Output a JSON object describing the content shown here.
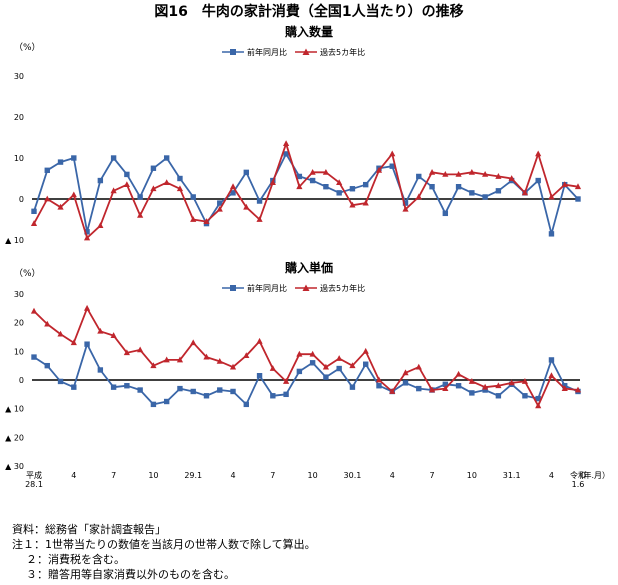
{
  "figure_title": "図16　牛肉の家計消費（全国1人当たり）の推移",
  "x_tick_labels": [
    {
      "i": 0,
      "lines": [
        "平成",
        "28.1"
      ]
    },
    {
      "i": 3,
      "lines": [
        "4"
      ]
    },
    {
      "i": 6,
      "lines": [
        "7"
      ]
    },
    {
      "i": 9,
      "lines": [
        "10"
      ]
    },
    {
      "i": 12,
      "lines": [
        "29.1"
      ]
    },
    {
      "i": 15,
      "lines": [
        "4"
      ]
    },
    {
      "i": 18,
      "lines": [
        "7"
      ]
    },
    {
      "i": 21,
      "lines": [
        "10"
      ]
    },
    {
      "i": 24,
      "lines": [
        "30.1"
      ]
    },
    {
      "i": 27,
      "lines": [
        "4"
      ]
    },
    {
      "i": 30,
      "lines": [
        "7"
      ]
    },
    {
      "i": 33,
      "lines": [
        "10"
      ]
    },
    {
      "i": 36,
      "lines": [
        "31.1"
      ]
    },
    {
      "i": 39,
      "lines": [
        "4"
      ]
    },
    {
      "i": 41,
      "lines": [
        "令和",
        "1.6"
      ]
    }
  ],
  "x_unit_label": "（年.月）",
  "colors": {
    "yoy": "#3a66a8",
    "avg5": "#c0262d",
    "zero_line": "#000000",
    "grid": "#dddddd"
  },
  "chart_data": [
    {
      "type": "line",
      "title": "購入数量",
      "ylabel": "（%）",
      "ylim": [
        -10,
        30
      ],
      "y_ticks": [
        30,
        20,
        10,
        0,
        -10
      ],
      "y_tick_labels": [
        "30",
        "20",
        "10",
        "0",
        "▲ 10"
      ],
      "legend_position": "top-center",
      "x": [
        "28.1",
        "28.2",
        "28.3",
        "28.4",
        "28.5",
        "28.6",
        "28.7",
        "28.8",
        "28.9",
        "28.10",
        "28.11",
        "28.12",
        "29.1",
        "29.2",
        "29.3",
        "29.4",
        "29.5",
        "29.6",
        "29.7",
        "29.8",
        "29.9",
        "29.10",
        "29.11",
        "29.12",
        "30.1",
        "30.2",
        "30.3",
        "30.4",
        "30.5",
        "30.6",
        "30.7",
        "30.8",
        "30.9",
        "30.10",
        "30.11",
        "30.12",
        "31.1",
        "31.2",
        "31.3",
        "31.4",
        "1.5",
        "1.6"
      ],
      "series": [
        {
          "name": "前年同月比",
          "marker": "square",
          "values": [
            -3,
            7,
            9,
            10,
            -8,
            4.5,
            10,
            6,
            0.5,
            7.5,
            10,
            5,
            0.5,
            -6,
            -1,
            1.5,
            6.5,
            -0.5,
            4.5,
            11,
            5.5,
            4.5,
            3,
            1.5,
            2.5,
            3.5,
            7.5,
            8,
            -1,
            5.5,
            3,
            -3.5,
            3,
            1.5,
            0.5,
            2,
            4.5,
            1.5,
            4.5,
            -8.5,
            3.5,
            0
          ]
        },
        {
          "name": "過去5カ年比",
          "marker": "triangle",
          "values": [
            -6,
            0,
            -2,
            1,
            -9.5,
            -6.5,
            2,
            3.5,
            -4,
            2.5,
            4,
            2.5,
            -5,
            -5.5,
            -2.5,
            3,
            -2,
            -5,
            4,
            13.5,
            3,
            6.5,
            6.5,
            4,
            -1.5,
            -1,
            7,
            11,
            -2.5,
            0.5,
            6.5,
            6,
            6,
            6.5,
            6,
            5.5,
            5,
            1.5,
            11,
            0.5,
            3.5,
            3
          ]
        }
      ]
    },
    {
      "type": "line",
      "title": "購入単価",
      "ylabel": "（%）",
      "ylim": [
        -30,
        30
      ],
      "y_ticks": [
        30,
        20,
        10,
        0,
        -10,
        -20,
        -30
      ],
      "y_tick_labels": [
        "30",
        "20",
        "10",
        "0",
        "▲ 10",
        "▲ 20",
        "▲ 30"
      ],
      "legend_position": "top-center",
      "x": [
        "28.1",
        "28.2",
        "28.3",
        "28.4",
        "28.5",
        "28.6",
        "28.7",
        "28.8",
        "28.9",
        "28.10",
        "28.11",
        "28.12",
        "29.1",
        "29.2",
        "29.3",
        "29.4",
        "29.5",
        "29.6",
        "29.7",
        "29.8",
        "29.9",
        "29.10",
        "29.11",
        "29.12",
        "30.1",
        "30.2",
        "30.3",
        "30.4",
        "30.5",
        "30.6",
        "30.7",
        "30.8",
        "30.9",
        "30.10",
        "30.11",
        "30.12",
        "31.1",
        "31.2",
        "31.3",
        "31.4",
        "1.5",
        "1.6"
      ],
      "series": [
        {
          "name": "前年同月比",
          "marker": "square",
          "values": [
            8,
            5,
            -0.5,
            -2.5,
            12.5,
            3.5,
            -2.5,
            -2,
            -3.5,
            -8.5,
            -7.5,
            -3,
            -4,
            -5.5,
            -3.5,
            -4,
            -8.5,
            1.5,
            -5.5,
            -5,
            3,
            6,
            1,
            4,
            -2.5,
            5.5,
            -2,
            -4,
            -1,
            -3,
            -3.5,
            -1.5,
            -2,
            -4.5,
            -3.5,
            -5.5,
            -1.5,
            -5.5,
            -6.5,
            7,
            -2,
            -4
          ]
        },
        {
          "name": "過去5カ年比",
          "marker": "triangle",
          "values": [
            24,
            19.5,
            16,
            13,
            25,
            17,
            15.5,
            9.5,
            10.5,
            5,
            7,
            7,
            13,
            8,
            6.5,
            4.5,
            8.5,
            13.5,
            4,
            -0.5,
            9,
            9,
            4.5,
            7.5,
            5,
            10,
            0,
            -4,
            2.5,
            4.5,
            -3.5,
            -3,
            2,
            -0.5,
            -2.5,
            -2,
            -1,
            -0.5,
            -9,
            1.5,
            -3,
            -3.5
          ]
        }
      ]
    }
  ],
  "notes": {
    "source": "資料：総務省「家計調査報告」",
    "note1": "注１：1世帯当たりの数値を当該月の世帯人数で除して算出。",
    "note2": "２：消費税を含む。",
    "note3": "３：贈答用等自家消費以外のものを含む。"
  }
}
